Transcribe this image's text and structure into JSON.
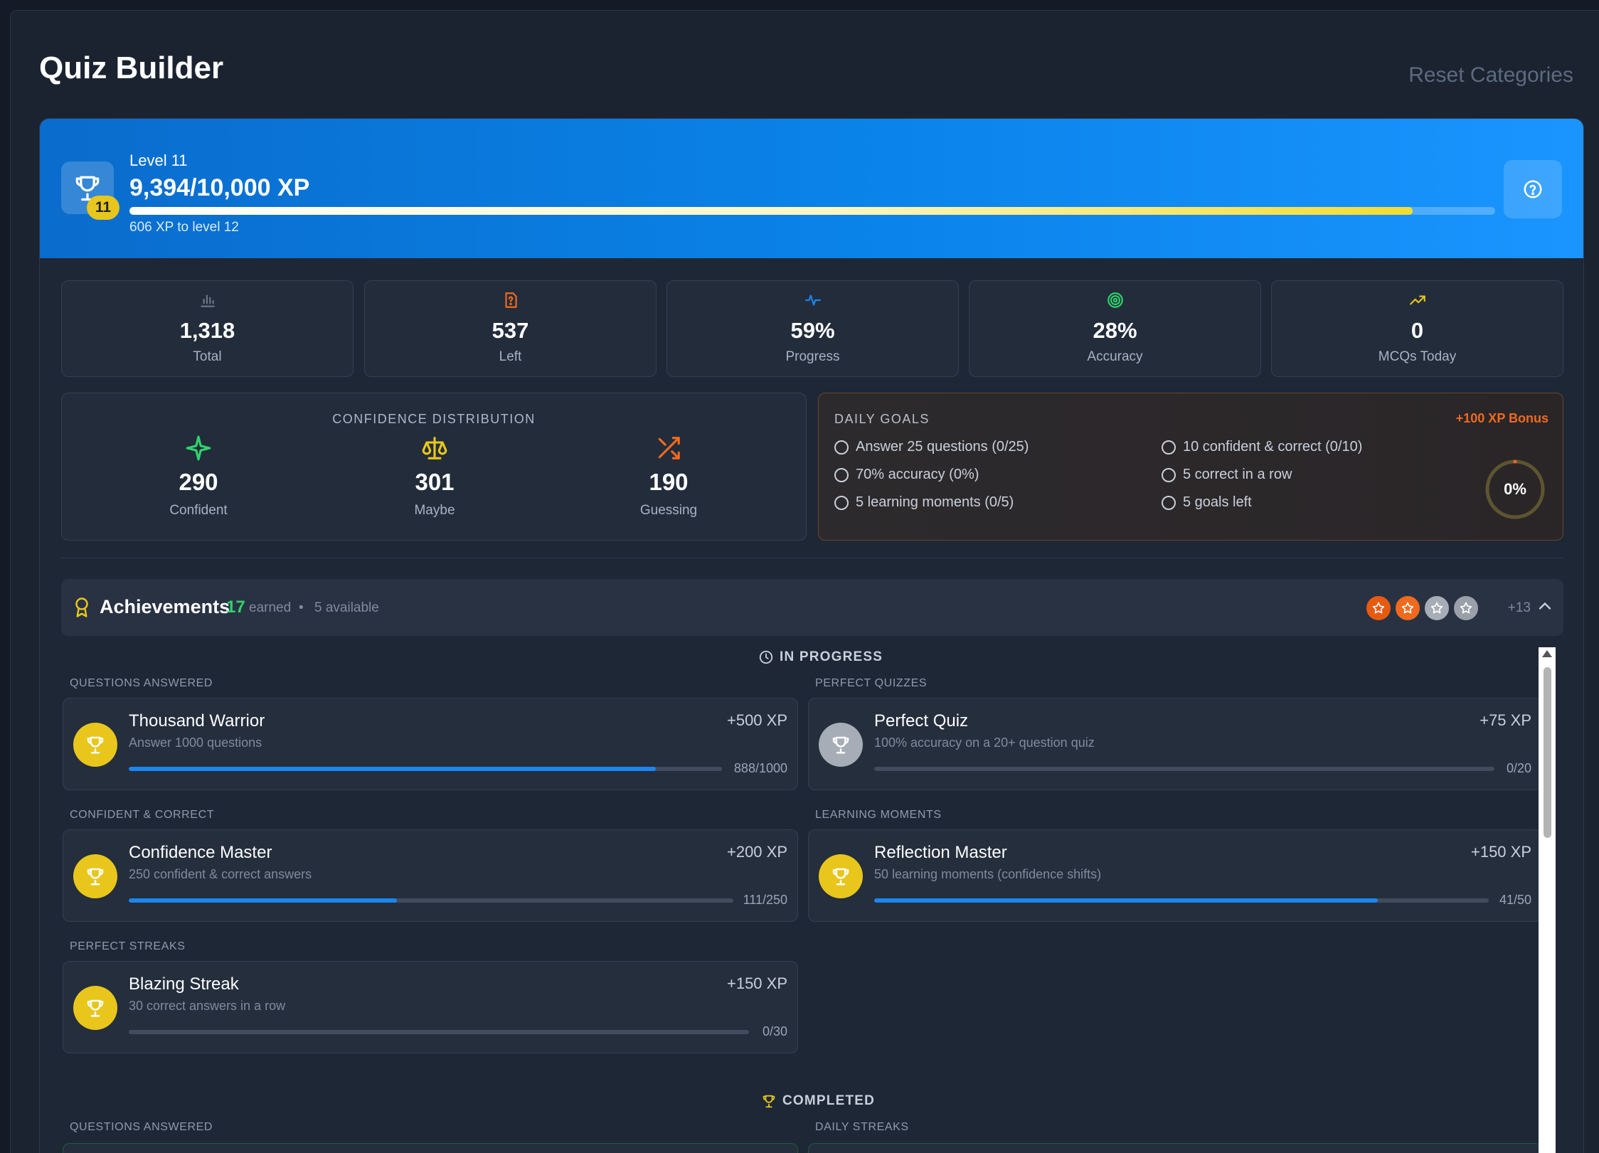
{
  "header": {
    "title": "Quiz Builder",
    "reset_label": "Reset Categories"
  },
  "level": {
    "label": "Level 11",
    "badge": "11",
    "xp_text": "9,394/10,000 XP",
    "xp_progress": 0.9394,
    "xp_remaining": "606 XP to level 12"
  },
  "stats": [
    {
      "value": "1,318",
      "label": "Total",
      "icon": "bar-chart-icon",
      "color": "#6b778a"
    },
    {
      "value": "537",
      "label": "Left",
      "icon": "question-file-icon",
      "color": "#f06a1d"
    },
    {
      "value": "59%",
      "label": "Progress",
      "icon": "activity-icon",
      "color": "#1a86f0"
    },
    {
      "value": "28%",
      "label": "Accuracy",
      "icon": "target-icon",
      "color": "#2fd36a"
    },
    {
      "value": "0",
      "label": "MCQs Today",
      "icon": "trending-up-icon",
      "color": "#e8c61c"
    }
  ],
  "confidence": {
    "title": "CONFIDENCE DISTRIBUTION",
    "items": [
      {
        "value": "290",
        "label": "Confident",
        "icon": "sparkle-icon",
        "color": "#2fd36a"
      },
      {
        "value": "301",
        "label": "Maybe",
        "icon": "scale-icon",
        "color": "#e8c61c"
      },
      {
        "value": "190",
        "label": "Guessing",
        "icon": "shuffle-icon",
        "color": "#f06a1d"
      }
    ]
  },
  "daily_goals": {
    "title": "DAILY GOALS",
    "bonus": "+100 XP Bonus",
    "goals": [
      "Answer 25 questions (0/25)",
      "70% accuracy (0%)",
      "5 learning moments (0/5)",
      "10 confident & correct (0/10)",
      "5 correct in a row",
      "5 goals left"
    ],
    "progress_label": "0%",
    "progress": 0
  },
  "achievements": {
    "title": "Achievements",
    "earned_count": "17",
    "earned_label": "earned",
    "dot": "•",
    "available_label": "5 available",
    "more_label": "+13",
    "in_progress_title": "IN PROGRESS",
    "completed_title": "COMPLETED",
    "in_progress": [
      {
        "category": "QUESTIONS ANSWERED",
        "name": "Thousand Warrior",
        "desc": "Answer 1000 questions",
        "xp": "+500 XP",
        "count": "888/1000",
        "progress": 0.888,
        "medal": "gold"
      },
      {
        "category": "PERFECT QUIZZES",
        "name": "Perfect Quiz",
        "desc": "100% accuracy on a 20+ question quiz",
        "xp": "+75 XP",
        "count": "0/20",
        "progress": 0,
        "medal": "silver"
      },
      {
        "category": "CONFIDENT & CORRECT",
        "name": "Confidence Master",
        "desc": "250 confident & correct answers",
        "xp": "+200 XP",
        "count": "111/250",
        "progress": 0.444,
        "medal": "gold"
      },
      {
        "category": "LEARNING MOMENTS",
        "name": "Reflection Master",
        "desc": "50 learning moments (confidence shifts)",
        "xp": "+150 XP",
        "count": "41/50",
        "progress": 0.82,
        "medal": "gold"
      },
      {
        "category": "PERFECT STREAKS",
        "name": "Blazing Streak",
        "desc": "30 correct answers in a row",
        "xp": "+150 XP",
        "count": "0/30",
        "progress": 0,
        "medal": "gold"
      }
    ],
    "completed_categories": [
      "QUESTIONS ANSWERED",
      "DAILY STREAKS"
    ]
  },
  "colors": {
    "accent_blue": "#1a86f0",
    "gold": "#e8c61c",
    "orange": "#f06a1d",
    "green": "#2fd36a"
  }
}
